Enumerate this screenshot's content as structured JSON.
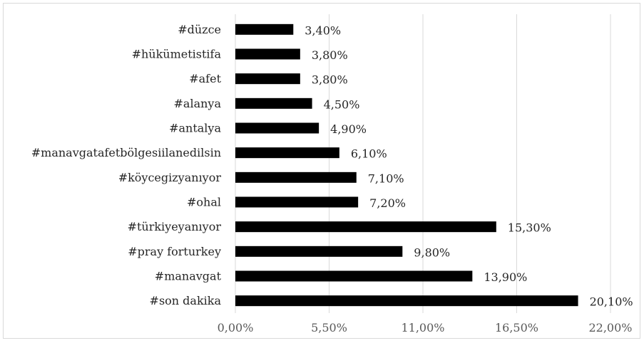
{
  "chart_data": {
    "type": "bar",
    "orientation": "horizontal",
    "categories": [
      "#son dakika",
      "#manavgat",
      "#pray forturkey",
      "#türkiyeyanıyor",
      "#ohal",
      "#köycegizyanıyor",
      "#manavgatafetbölgesiilanedilsin",
      "#antalya",
      "#alanya",
      "#afet",
      "#hükümetistifa",
      "#düzce"
    ],
    "values": [
      20.1,
      13.9,
      9.8,
      15.3,
      7.2,
      7.1,
      6.1,
      4.9,
      4.5,
      3.8,
      3.8,
      3.4
    ],
    "value_labels": [
      "20,10%",
      "13,90%",
      "9,80%",
      "15,30%",
      "7,20%",
      "7,10%",
      "6,10%",
      "4,90%",
      "4,50%",
      "3,80%",
      "3,80%",
      "3,40%"
    ],
    "x_ticks": [
      0,
      5.5,
      11,
      16.5,
      22
    ],
    "x_tick_labels": [
      "0,00%",
      "5,50%",
      "11,00%",
      "16,50%",
      "22,00%"
    ],
    "xlim": [
      0,
      22
    ],
    "grid": "vertical",
    "legend": "none",
    "bar_color": "#000000",
    "grid_color": "#d9d9d9"
  }
}
